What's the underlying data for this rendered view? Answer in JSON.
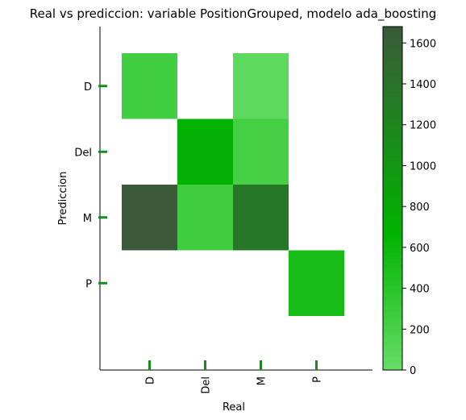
{
  "chart_data": {
    "type": "heatmap",
    "title": "Real vs prediccion: variable PositionGrouped, modelo ada_boosting",
    "xlabel": "Real",
    "ylabel": "Prediccion",
    "x_categories": [
      "D",
      "Del",
      "M",
      "P"
    ],
    "y_categories": [
      "D",
      "Del",
      "M",
      "P"
    ],
    "cells": [
      {
        "real": "D",
        "pred": "D",
        "value": 240
      },
      {
        "real": "M",
        "pred": "D",
        "value": 60
      },
      {
        "real": "Del",
        "pred": "Del",
        "value": 700
      },
      {
        "real": "M",
        "pred": "Del",
        "value": 220
      },
      {
        "real": "D",
        "pred": "M",
        "value": 1680
      },
      {
        "real": "Del",
        "pred": "M",
        "value": 260
      },
      {
        "real": "M",
        "pred": "M",
        "value": 1340
      },
      {
        "real": "P",
        "pred": "P",
        "value": 520
      }
    ],
    "colorbar": {
      "min": 0,
      "max": 1680,
      "ticks": [
        0,
        200,
        400,
        600,
        800,
        1000,
        1200,
        1400,
        1600
      ],
      "colors": [
        "#66dd66",
        "#00b300",
        "#3a5a3a"
      ]
    }
  }
}
